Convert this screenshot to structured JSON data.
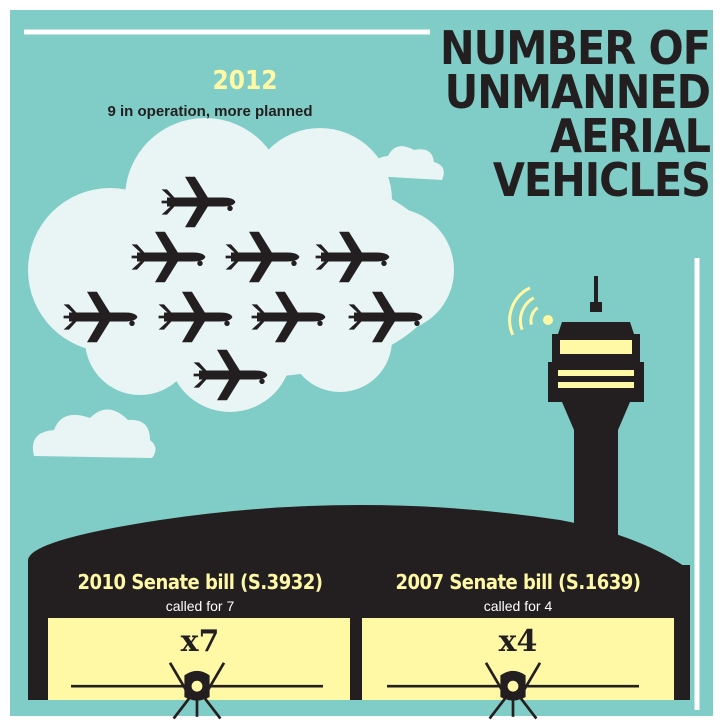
{
  "title_lines": [
    "NUMBER OF",
    "UNMANNED",
    "AERIAL",
    "VEHICLES"
  ],
  "year_2012": {
    "year": "2012",
    "caption": "9 in operation, more planned",
    "drone_count": 9
  },
  "bills": [
    {
      "title": "2010 Senate bill (S.3932)",
      "caption": "called for 7",
      "multiplier": "x7"
    },
    {
      "title": "2007 Senate bill (S.1639)",
      "caption": "called for 4",
      "multiplier": "x4"
    }
  ],
  "colors": {
    "background": "#80ccc6",
    "cloud": "#e9f4f4",
    "dark": "#231f20",
    "highlight": "#fff9a6",
    "white": "#ffffff"
  },
  "icons": [
    "drone-icon",
    "control-tower-icon",
    "signal-waves-icon",
    "cloud-icon",
    "hangar-icon"
  ]
}
